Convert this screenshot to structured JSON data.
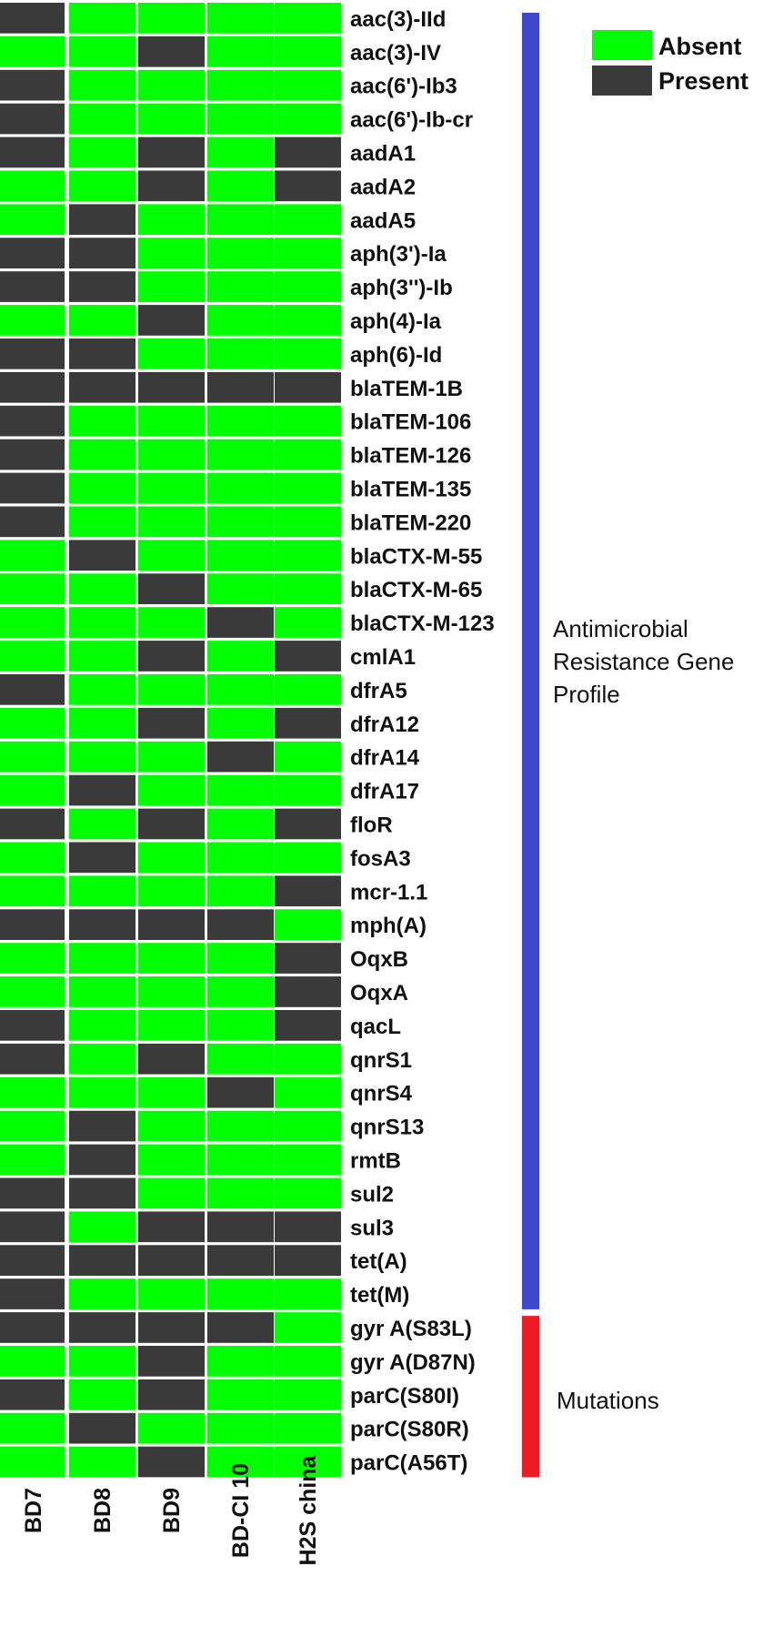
{
  "chart_data": {
    "type": "heatmap",
    "columns": [
      "BD7",
      "BD8",
      "BD9",
      "BD-CI 10",
      "H2S china"
    ],
    "rows": [
      "aac(3)-IId",
      "aac(3)-IV",
      "aac(6')-Ib3",
      "aac(6')-Ib-cr",
      "aadA1",
      "aadA2",
      "aadA5",
      "aph(3')-Ia",
      "aph(3'')-Ib",
      "aph(4)-Ia",
      "aph(6)-Id",
      "blaTEM-1B",
      "blaTEM-106",
      "blaTEM-126",
      "blaTEM-135",
      "blaTEM-220",
      "blaCTX-M-55",
      "blaCTX-M-65",
      "blaCTX-M-123",
      "cmlA1",
      "dfrA5",
      "dfrA12",
      "dfrA14",
      "dfrA17",
      "floR",
      "fosA3",
      "mcr-1.1",
      "mph(A)",
      "OqxB",
      "OqxA",
      "qacL",
      "qnrS1",
      "qnrS4",
      "qnrS13",
      "rmtB",
      "sul2",
      "sul3",
      "tet(A)",
      "tet(M)",
      "gyr A(S83L)",
      "gyr A(D87N)",
      "parC(S80I)",
      "parC(S80R)",
      "parC(A56T)"
    ],
    "values": [
      [
        1,
        0,
        0,
        0,
        0
      ],
      [
        0,
        0,
        1,
        0,
        0
      ],
      [
        1,
        0,
        0,
        0,
        0
      ],
      [
        1,
        0,
        0,
        0,
        0
      ],
      [
        1,
        0,
        1,
        0,
        1
      ],
      [
        0,
        0,
        1,
        0,
        1
      ],
      [
        0,
        1,
        0,
        0,
        0
      ],
      [
        1,
        1,
        0,
        0,
        0
      ],
      [
        1,
        1,
        0,
        0,
        0
      ],
      [
        0,
        0,
        1,
        0,
        0
      ],
      [
        1,
        1,
        0,
        0,
        0
      ],
      [
        1,
        1,
        1,
        1,
        1
      ],
      [
        1,
        0,
        0,
        0,
        0
      ],
      [
        1,
        0,
        0,
        0,
        0
      ],
      [
        1,
        0,
        0,
        0,
        0
      ],
      [
        1,
        0,
        0,
        0,
        0
      ],
      [
        0,
        1,
        0,
        0,
        0
      ],
      [
        0,
        0,
        1,
        0,
        0
      ],
      [
        0,
        0,
        0,
        1,
        0
      ],
      [
        0,
        0,
        1,
        0,
        1
      ],
      [
        1,
        0,
        0,
        0,
        0
      ],
      [
        0,
        0,
        1,
        0,
        1
      ],
      [
        0,
        0,
        0,
        1,
        0
      ],
      [
        0,
        1,
        0,
        0,
        0
      ],
      [
        1,
        0,
        1,
        0,
        1
      ],
      [
        0,
        1,
        0,
        0,
        0
      ],
      [
        0,
        0,
        0,
        0,
        1
      ],
      [
        1,
        1,
        1,
        1,
        0
      ],
      [
        0,
        0,
        0,
        0,
        1
      ],
      [
        0,
        0,
        0,
        0,
        1
      ],
      [
        1,
        0,
        0,
        0,
        1
      ],
      [
        1,
        0,
        1,
        0,
        0
      ],
      [
        0,
        0,
        0,
        1,
        0
      ],
      [
        0,
        1,
        0,
        0,
        0
      ],
      [
        0,
        1,
        0,
        0,
        0
      ],
      [
        1,
        1,
        0,
        0,
        0
      ],
      [
        1,
        0,
        1,
        1,
        1
      ],
      [
        1,
        1,
        1,
        1,
        1
      ],
      [
        1,
        0,
        0,
        0,
        0
      ],
      [
        1,
        1,
        1,
        1,
        0
      ],
      [
        0,
        0,
        1,
        0,
        0
      ],
      [
        1,
        0,
        1,
        0,
        0
      ],
      [
        0,
        1,
        0,
        0,
        0
      ],
      [
        0,
        0,
        1,
        0,
        0
      ]
    ],
    "value_meaning": {
      "0": "Absent",
      "1": "Present"
    },
    "legend": [
      {
        "label": "Absent",
        "color": "#00ff00"
      },
      {
        "label": "Present",
        "color": "#3a3a3a"
      }
    ],
    "groups": [
      {
        "label": "Antimicrobial Resistance Gene Profile",
        "lines": [
          "Antimicrobial",
          "Resistance Gene",
          "Profile"
        ],
        "first_row": 0,
        "last_row": 38,
        "color": "#3f47cc"
      },
      {
        "label": "Mutations",
        "lines": [
          "Mutations"
        ],
        "first_row": 39,
        "last_row": 43,
        "color": "#ed1c24"
      }
    ],
    "legend_placement": "top-right"
  }
}
